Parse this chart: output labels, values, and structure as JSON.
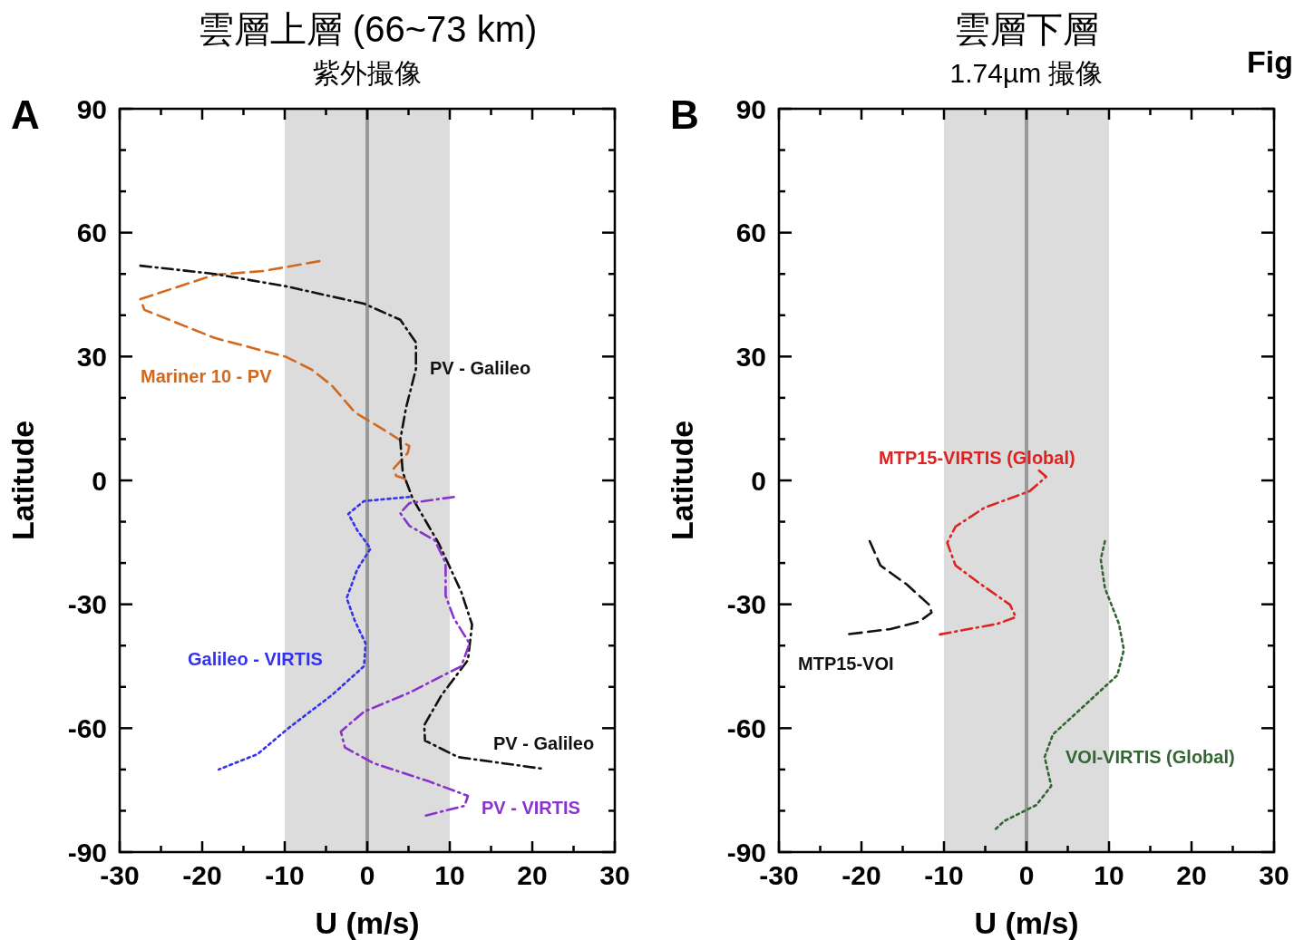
{
  "chart_data": [
    {
      "type": "line",
      "title": "雲層上層 (66~73 km)",
      "subtitle": "紫外撮像",
      "xlabel": "U (m/s)",
      "ylabel": "Latitude",
      "xlim": [
        -30,
        30
      ],
      "ylim": [
        -90,
        90
      ],
      "xticks": [
        -30,
        {
          "value": -25,
          "label": null
        },
        -20,
        {
          "value": -15,
          "label": null
        },
        -10,
        {
          "value": -5,
          "label": null
        },
        0,
        {
          "value": 5,
          "label": null
        },
        10,
        {
          "value": 15,
          "label": null
        },
        20,
        {
          "value": 25,
          "label": null
        },
        30
      ],
      "yticks": [
        -90,
        {
          "value": -80,
          "label": null
        },
        {
          "value": -70,
          "label": null
        },
        -60,
        {
          "value": -50,
          "label": null
        },
        {
          "value": -40,
          "label": null
        },
        -30,
        {
          "value": -20,
          "label": null
        },
        {
          "value": -10,
          "label": null
        },
        0,
        {
          "value": 10,
          "label": null
        },
        {
          "value": 20,
          "label": null
        },
        30,
        {
          "value": 40,
          "label": null
        },
        {
          "value": 50,
          "label": null
        },
        60,
        {
          "value": 70,
          "label": null
        },
        {
          "value": 80,
          "label": null
        },
        90
      ],
      "bands": [
        {
          "axis": "x",
          "from": -10,
          "to": 10,
          "color": "#dcdcdc"
        }
      ],
      "ref_lines": [
        {
          "axis": "x",
          "value": 0,
          "color": "#999999"
        }
      ],
      "series": [
        {
          "name": "Mariner 10 - PV",
          "color": "#d2691e",
          "line_style": "dashed",
          "x": [
            -5.8,
            -12.6,
            -18.5,
            -27.5,
            -27.0,
            -18.5,
            -9.8,
            -6.7,
            -4.3,
            -1.5,
            2.3,
            5.1,
            4.9,
            3.2,
            3.5,
            4.6
          ],
          "values": [
            53.1,
            50.7,
            49.8,
            43.9,
            41.3,
            34.5,
            29.9,
            26.8,
            23.0,
            16.5,
            11.9,
            8.3,
            6.6,
            2.9,
            1.1,
            0.4
          ]
        },
        {
          "name": "PV - Galileo",
          "color": "#111111",
          "line_style": "dashdot",
          "x": [
            -27.5,
            -18.5,
            -9.8,
            -0.4,
            4.0,
            5.9,
            5.9,
            4.7,
            4.0,
            4.3,
            5.5,
            8.7,
            11.4,
            12.7,
            12.2,
            9.0,
            6.9,
            7.0,
            11.0,
            21.2
          ],
          "values": [
            52.0,
            50.0,
            47.0,
            42.8,
            38.9,
            33.4,
            27.0,
            17.6,
            9.9,
            2.0,
            -4.4,
            -15.4,
            -27.0,
            -34.9,
            -43.5,
            -52.0,
            -59.3,
            -63.0,
            -67.0,
            -69.8
          ]
        },
        {
          "name": "Galileo - VIRTIS",
          "color": "#3333ee",
          "line_style": "dotted",
          "x": [
            5.1,
            -0.4,
            -2.3,
            -1.2,
            0.4,
            -1.2,
            -2.5,
            -1.5,
            -0.2,
            -0.4,
            -4.3,
            -9.5,
            -13.3,
            -18.0
          ],
          "values": [
            -4.0,
            -5.0,
            -8.1,
            -12.1,
            -16.5,
            -21.5,
            -28.5,
            -34.0,
            -39.5,
            -45.0,
            -52.0,
            -59.9,
            -66.3,
            -70.0
          ]
        },
        {
          "name": "PV - VIRTIS",
          "color": "#8833cc",
          "line_style": "dashdot",
          "x": [
            10.5,
            5.1,
            4.0,
            5.1,
            8.2,
            9.5,
            9.5,
            10.5,
            12.4,
            11.4,
            5.1,
            -0.4,
            -3.2,
            -2.7,
            0.8,
            7.5,
            12.2,
            11.8,
            7.0
          ],
          "values": [
            -4.0,
            -5.5,
            -7.9,
            -11.0,
            -14.5,
            -20.0,
            -27.9,
            -33.4,
            -39.5,
            -45.0,
            -51.4,
            -56.0,
            -60.8,
            -64.7,
            -68.5,
            -72.9,
            -76.4,
            -78.8,
            -81.2
          ]
        }
      ],
      "annotations": [
        "A"
      ]
    },
    {
      "type": "line",
      "title": "雲層下層",
      "subtitle": "1.74µm 撮像",
      "xlabel": "U (m/s)",
      "ylabel": "Latitude",
      "xlim": [
        -30,
        30
      ],
      "ylim": [
        -90,
        90
      ],
      "xticks": [
        -30,
        {
          "value": -25,
          "label": null
        },
        -20,
        {
          "value": -15,
          "label": null
        },
        -10,
        {
          "value": -5,
          "label": null
        },
        0,
        {
          "value": 5,
          "label": null
        },
        10,
        {
          "value": 15,
          "label": null
        },
        20,
        {
          "value": 25,
          "label": null
        },
        30
      ],
      "yticks": [
        -90,
        {
          "value": -80,
          "label": null
        },
        {
          "value": -70,
          "label": null
        },
        -60,
        {
          "value": -50,
          "label": null
        },
        {
          "value": -40,
          "label": null
        },
        -30,
        {
          "value": -20,
          "label": null
        },
        {
          "value": -10,
          "label": null
        },
        0,
        {
          "value": 10,
          "label": null
        },
        {
          "value": 20,
          "label": null
        },
        30,
        {
          "value": 40,
          "label": null
        },
        {
          "value": 50,
          "label": null
        },
        60,
        {
          "value": 70,
          "label": null
        },
        {
          "value": 80,
          "label": null
        },
        90
      ],
      "bands": [
        {
          "axis": "x",
          "from": -10,
          "to": 10,
          "color": "#dcdcdc"
        }
      ],
      "ref_lines": [
        {
          "axis": "x",
          "value": 0,
          "color": "#999999"
        }
      ],
      "series": [
        {
          "name": "MTP15-VIRTIS (Global)",
          "color": "#dd2222",
          "line_style": "dashdot",
          "x": [
            1.5,
            2.4,
            0.4,
            -5.1,
            -8.6,
            -9.6,
            -8.6,
            -5.5,
            -2.0,
            -1.3,
            -3.5,
            -10.5
          ],
          "values": [
            2.4,
            0.9,
            -2.6,
            -6.6,
            -11.2,
            -15.1,
            -20.6,
            -25.2,
            -30.1,
            -33.1,
            -34.7,
            -37.3
          ]
        },
        {
          "name": "MTP15-VOI",
          "color": "#111111",
          "line_style": "dashed",
          "x": [
            -19.0,
            -17.7,
            -14.5,
            -11.8,
            -11.5,
            -13.0,
            -16.5,
            -21.8
          ],
          "values": [
            -14.7,
            -20.6,
            -25.2,
            -30.1,
            -32.0,
            -34.2,
            -36.0,
            -37.3
          ]
        },
        {
          "name": "VOI-VIRTIS (Global)",
          "color": "#336633",
          "line_style": "dotted",
          "x": [
            9.5,
            9.0,
            9.5,
            11.2,
            11.8,
            11.0,
            6.7,
            3.2,
            2.2,
            3.0,
            1.2,
            -2.7,
            -4.0
          ],
          "values": [
            -14.7,
            -19.1,
            -26.1,
            -34.7,
            -41.0,
            -47.2,
            -55.1,
            -61.5,
            -67.0,
            -74.0,
            -78.6,
            -82.5,
            -84.9
          ]
        }
      ],
      "annotations": [
        "B",
        "Fig"
      ]
    }
  ]
}
